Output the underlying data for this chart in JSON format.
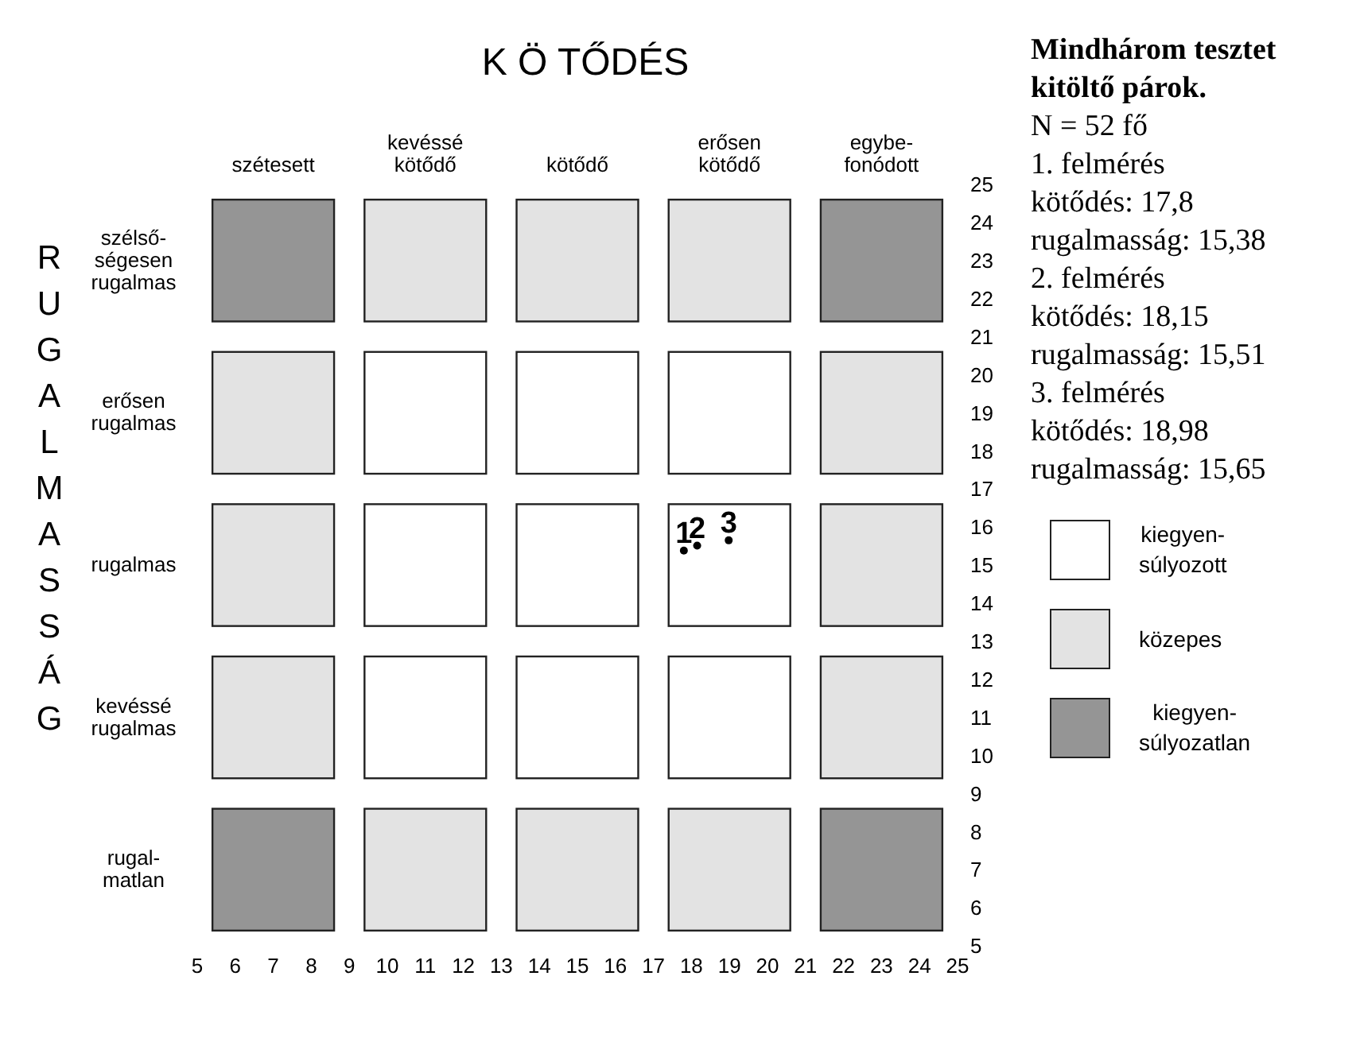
{
  "chart_data": {
    "type": "scatter",
    "title": "K Ö TŐDÉS",
    "ylabel": "RUGALMASSÁG",
    "xlim": [
      5,
      25
    ],
    "xticks": [
      5,
      6,
      7,
      8,
      9,
      10,
      11,
      12,
      13,
      14,
      15,
      16,
      17,
      18,
      19,
      20,
      21,
      22,
      23,
      24,
      25
    ],
    "ylim": [
      5,
      25
    ],
    "yticks": [
      5,
      6,
      7,
      8,
      9,
      10,
      11,
      12,
      13,
      14,
      15,
      16,
      17,
      18,
      19,
      20,
      21,
      22,
      23,
      24,
      25
    ],
    "marker": "circle",
    "series": [
      {
        "name": "szélső-ségesen rugalmas",
        "type": "bar",
        "x": [
          7,
          11,
          15,
          19,
          23
        ],
        "base": [
          21.4,
          21.4,
          21.4,
          21.4,
          21.4
        ],
        "values": [
          3.2,
          3.2,
          3.2,
          3.2,
          3.2
        ],
        "colors": [
          "#959595",
          "#e3e3e3",
          "#e3e3e3",
          "#e3e3e3",
          "#959595"
        ]
      },
      {
        "name": "erősen rugalmas",
        "type": "bar",
        "x": [
          7,
          11,
          15,
          19,
          23
        ],
        "base": [
          17.4,
          17.4,
          17.4,
          17.4,
          17.4
        ],
        "values": [
          3.2,
          3.2,
          3.2,
          3.2,
          3.2
        ],
        "colors": [
          "#e3e3e3",
          "#ffffff",
          "#ffffff",
          "#ffffff",
          "#e3e3e3"
        ]
      },
      {
        "name": "rugalmas",
        "type": "bar",
        "x": [
          7,
          11,
          15,
          19,
          23
        ],
        "base": [
          13.4,
          13.4,
          13.4,
          13.4,
          13.4
        ],
        "values": [
          3.2,
          3.2,
          3.2,
          3.2,
          3.2
        ],
        "colors": [
          "#e3e3e3",
          "#ffffff",
          "#ffffff",
          "#ffffff",
          "#e3e3e3"
        ]
      },
      {
        "name": "kevéssé rugalmas",
        "type": "bar",
        "x": [
          7,
          11,
          15,
          19,
          23
        ],
        "base": [
          9.4,
          9.4,
          9.4,
          9.4,
          9.4
        ],
        "values": [
          3.2,
          3.2,
          3.2,
          3.2,
          3.2
        ],
        "colors": [
          "#e3e3e3",
          "#ffffff",
          "#ffffff",
          "#ffffff",
          "#e3e3e3"
        ]
      },
      {
        "name": "rugal-matlan",
        "type": "bar",
        "x": [
          7,
          11,
          15,
          19,
          23
        ],
        "base": [
          5.4,
          5.4,
          5.4,
          5.4,
          5.4
        ],
        "values": [
          3.2,
          3.2,
          3.2,
          3.2,
          3.2
        ],
        "colors": [
          "#959595",
          "#e3e3e3",
          "#e3e3e3",
          "#e3e3e3",
          "#959595"
        ]
      },
      {
        "name": "1",
        "color": "#000000",
        "x": [
          17.8
        ],
        "values": [
          15.38
        ]
      },
      {
        "name": "2",
        "color": "#000000",
        "x": [
          18.15
        ],
        "values": [
          15.51
        ]
      },
      {
        "name": "3",
        "color": "#000000",
        "x": [
          18.98
        ],
        "values": [
          15.65
        ]
      }
    ],
    "annotations": [
      "szétesett",
      "kevéssé kötődő",
      "kötődő",
      "erősen kötődő",
      "egybe-fonódott",
      "Mindhárom tesztet kitöltő párok.",
      "N = 52 fő",
      "1. felmérés",
      "kötődés: 17,8",
      "rugalmasság: 15,38",
      "2. felmérés",
      "kötődés: 18,15",
      "rugalmasság: 15,51",
      "3. felmérés",
      "kötődés: 18,98",
      "rugalmasság: 15,65",
      "kiegyen-súlyozott",
      "közepes",
      "kiegyen-súlyozatlan"
    ]
  }
}
